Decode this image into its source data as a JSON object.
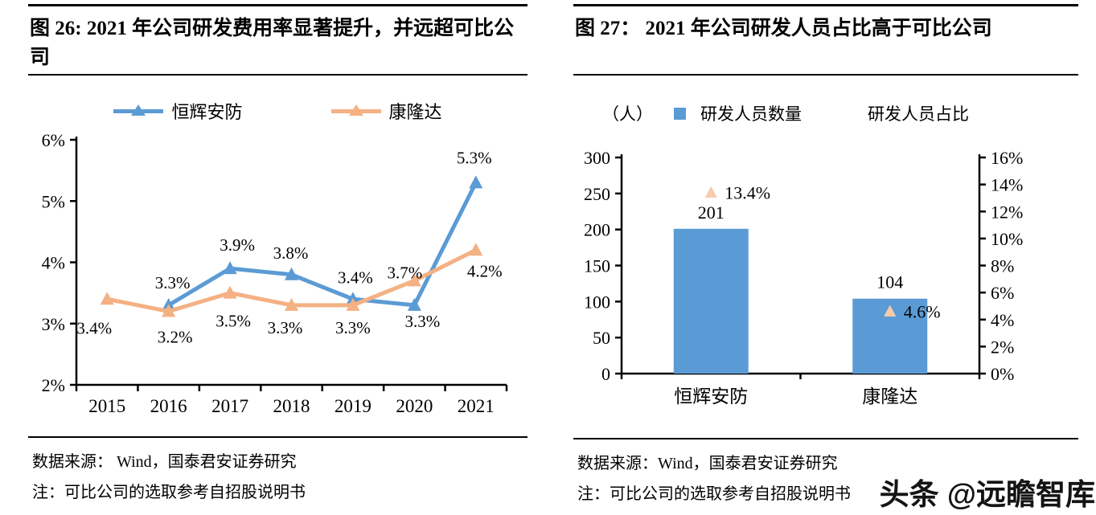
{
  "watermark": {
    "text": "头条 @远瞻智库"
  },
  "figure26": {
    "title": "图 26: 2021 年公司研发费用率显著提升，并远超可比公司",
    "source": "数据来源：  Wind，国泰君安证券研究",
    "note": "注：可比公司的选取参考自招股说明书"
  },
  "figure27": {
    "title": "图 27： 2021 年公司研发人员占比高于可比公司",
    "unit_label": "（人）",
    "source": "数据来源：Wind，国泰君安证券研究",
    "note": "注：可比公司的选取参考自招股说明书"
  },
  "chart_data": [
    {
      "type": "line",
      "title": "图 26: 2021 年公司研发费用率显著提升，并远超可比公司",
      "categories": [
        "2015",
        "2016",
        "2017",
        "2018",
        "2019",
        "2020",
        "2021"
      ],
      "ylim": [
        2,
        6
      ],
      "y_tick_labels": [
        "2%",
        "3%",
        "4%",
        "5%",
        "6%"
      ],
      "grid": false,
      "legend_position": "top",
      "series": [
        {
          "name": "恒辉安防",
          "color": "#5B9BD5",
          "marker": "triangle",
          "values": [
            null,
            3.3,
            3.9,
            3.8,
            3.4,
            3.3,
            5.3
          ],
          "point_labels": [
            null,
            "3.3%",
            "3.9%",
            "3.8%",
            "3.4%",
            "3.3%",
            "5.3%"
          ],
          "label_offsets": [
            null,
            [
              5,
              -21
            ],
            [
              9,
              -22
            ],
            [
              -1,
              -20
            ],
            [
              3,
              -20
            ],
            [
              10,
              27
            ],
            [
              -2,
              -24
            ]
          ]
        },
        {
          "name": "康隆达",
          "color": "#F4B183",
          "marker": "triangle",
          "values": [
            3.4,
            3.2,
            3.5,
            3.3,
            3.3,
            3.7,
            4.2
          ],
          "point_labels": [
            "3.4%",
            "3.2%",
            "3.5%",
            "3.3%",
            "3.3%",
            "3.7%",
            "4.2%"
          ],
          "label_offsets": [
            [
              -16,
              43
            ],
            [
              8,
              39
            ],
            [
              4,
              42
            ],
            [
              -8,
              35
            ],
            [
              0,
              35
            ],
            [
              -12,
              -3
            ],
            [
              11,
              33
            ]
          ]
        }
      ]
    },
    {
      "type": "bar",
      "title": "图 27： 2021 年公司研发人员占比高于可比公司",
      "categories": [
        "恒辉安防",
        "康隆达"
      ],
      "unit_label": "（人）",
      "left_axis": {
        "lim": [
          0,
          300
        ],
        "step": 50,
        "tick_labels": [
          "0",
          "50",
          "100",
          "150",
          "200",
          "250",
          "300"
        ]
      },
      "right_axis": {
        "lim": [
          0,
          16
        ],
        "step": 2,
        "tick_labels": [
          "0%",
          "2%",
          "4%",
          "6%",
          "8%",
          "10%",
          "12%",
          "14%",
          "16%"
        ]
      },
      "grid": false,
      "legend_position": "top",
      "series": [
        {
          "name": "研发人员数量",
          "render": "bar",
          "axis": "left",
          "color": "#5B9BD5",
          "values": [
            201,
            104
          ],
          "point_labels": [
            "201",
            "104"
          ]
        },
        {
          "name": "研发人员占比",
          "render": "point",
          "axis": "right",
          "color": "#F8CBAD",
          "marker": "triangle",
          "values": [
            13.4,
            4.6
          ],
          "point_labels": [
            "13.4%",
            "4.6%"
          ]
        }
      ]
    }
  ]
}
